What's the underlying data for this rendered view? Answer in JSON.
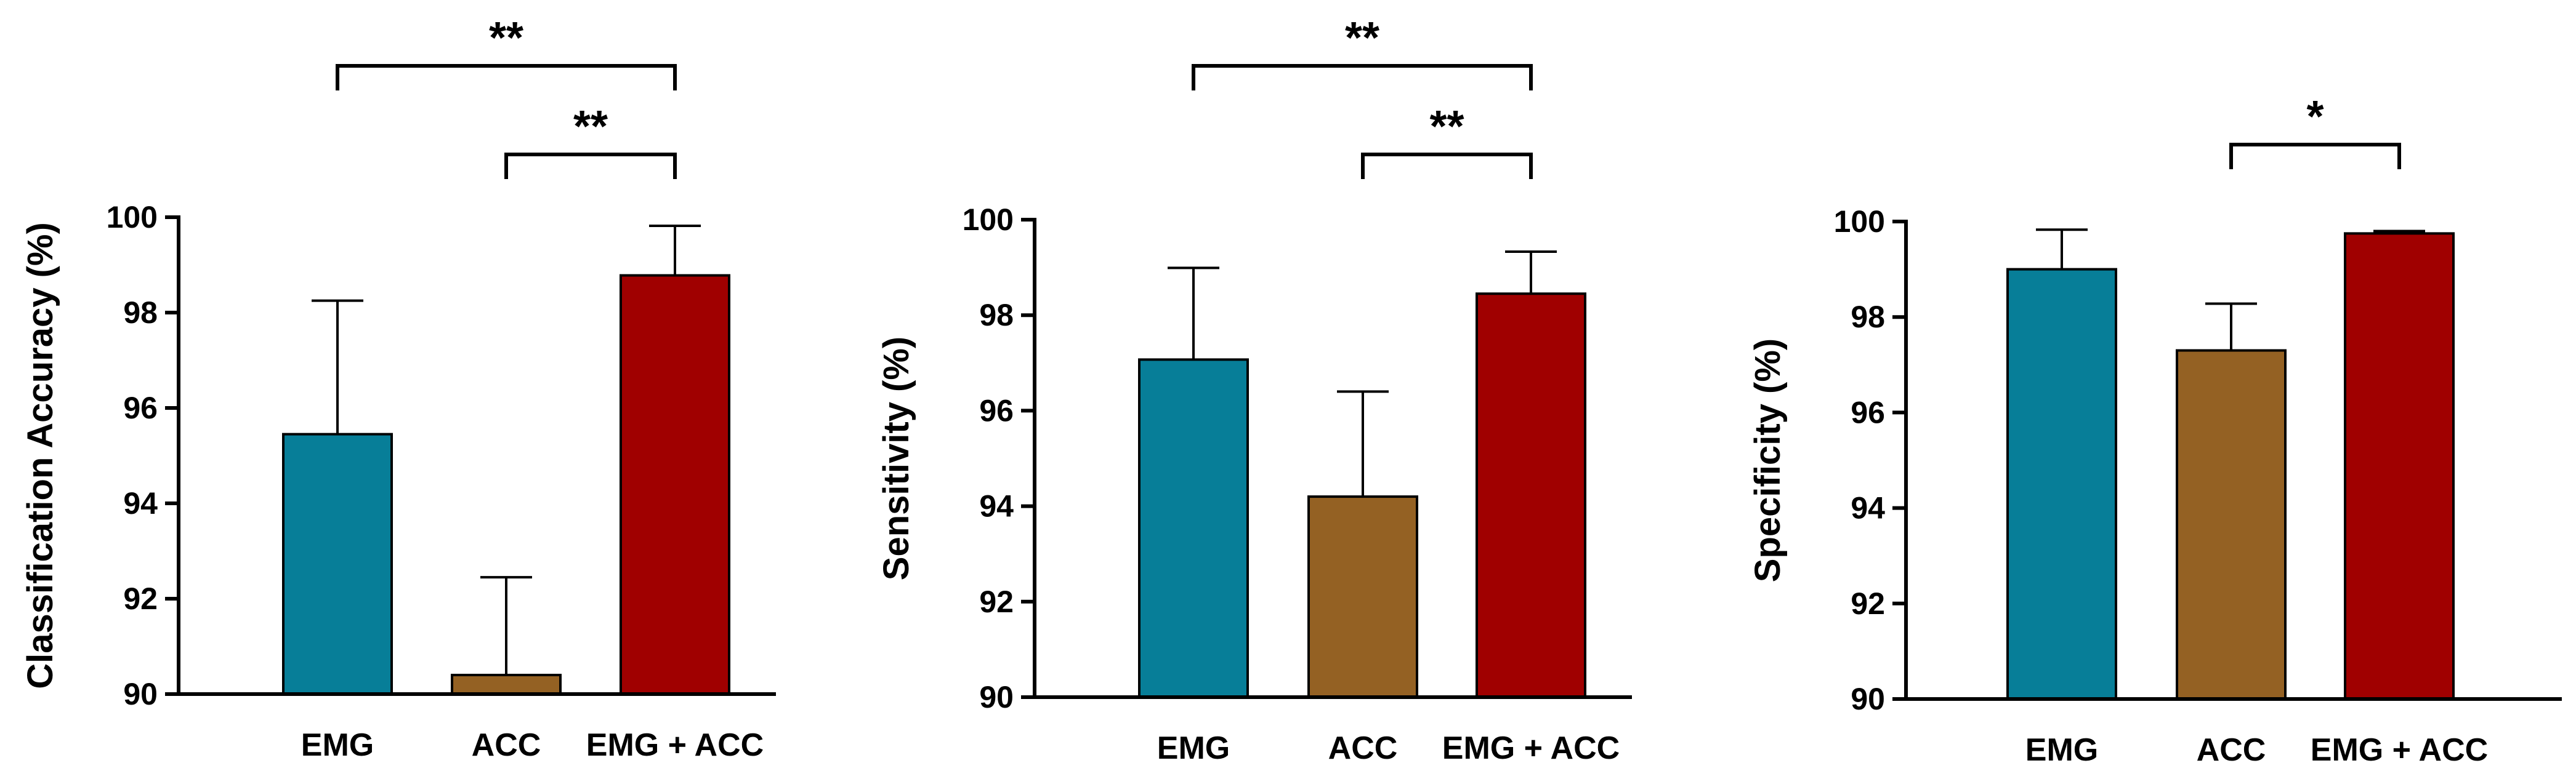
{
  "chart_data": [
    {
      "type": "bar",
      "categories": [
        "EMG",
        "ACC",
        "EMG + ACC"
      ],
      "values": [
        95.45,
        90.4,
        98.78
      ],
      "error_upper": [
        98.25,
        92.45,
        99.82
      ],
      "ylabel": "Classification Accuracy (%)",
      "ylim": [
        90,
        100
      ],
      "yticks": [
        "90",
        "92",
        "94",
        "96",
        "98",
        "100"
      ],
      "colors": [
        "#077E98",
        "#946123",
        "#A00000"
      ],
      "significance": [
        {
          "from": 0,
          "to": 2,
          "label": "**"
        },
        {
          "from": 1,
          "to": 2,
          "label": "**"
        }
      ]
    },
    {
      "type": "bar",
      "categories": [
        "EMG",
        "ACC",
        "EMG + ACC"
      ],
      "values": [
        97.07,
        94.2,
        98.45
      ],
      "error_upper": [
        98.99,
        96.4,
        99.33
      ],
      "ylabel": "Sensitivity (%)",
      "ylim": [
        90,
        100
      ],
      "yticks": [
        "90",
        "92",
        "94",
        "96",
        "98",
        "100"
      ],
      "colors": [
        "#077E98",
        "#946123",
        "#A00000"
      ],
      "significance": [
        {
          "from": 0,
          "to": 2,
          "label": "**"
        },
        {
          "from": 1,
          "to": 2,
          "label": "**"
        }
      ]
    },
    {
      "type": "bar",
      "categories": [
        "EMG",
        "ACC",
        "EMG + ACC"
      ],
      "values": [
        99.0,
        97.3,
        99.75
      ],
      "error_upper": [
        99.83,
        98.28,
        99.8
      ],
      "ylabel": "Specificity (%)",
      "ylim": [
        90,
        100
      ],
      "yticks": [
        "90",
        "92",
        "94",
        "96",
        "98",
        "100"
      ],
      "colors": [
        "#077E98",
        "#946123",
        "#A00000"
      ],
      "significance": [
        {
          "from": 1,
          "to": 2,
          "label": "*"
        }
      ]
    }
  ]
}
